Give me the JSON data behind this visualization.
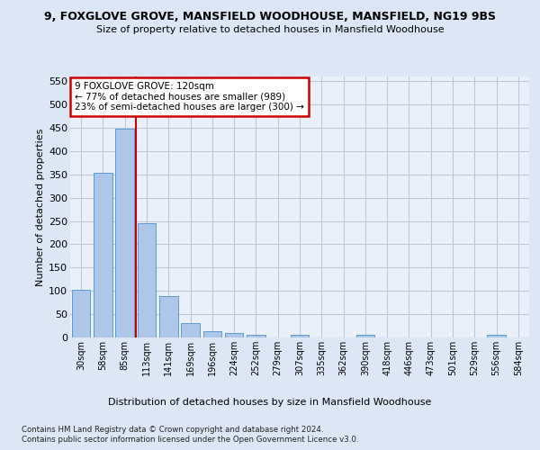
{
  "title": "9, FOXGLOVE GROVE, MANSFIELD WOODHOUSE, MANSFIELD, NG19 9BS",
  "subtitle": "Size of property relative to detached houses in Mansfield Woodhouse",
  "xlabel": "Distribution of detached houses by size in Mansfield Woodhouse",
  "ylabel": "Number of detached properties",
  "bin_labels": [
    "30sqm",
    "58sqm",
    "85sqm",
    "113sqm",
    "141sqm",
    "169sqm",
    "196sqm",
    "224sqm",
    "252sqm",
    "279sqm",
    "307sqm",
    "335sqm",
    "362sqm",
    "390sqm",
    "418sqm",
    "446sqm",
    "473sqm",
    "501sqm",
    "529sqm",
    "556sqm",
    "584sqm"
  ],
  "bar_values": [
    103,
    353,
    448,
    245,
    88,
    30,
    13,
    9,
    5,
    0,
    5,
    0,
    0,
    5,
    0,
    0,
    0,
    0,
    0,
    5,
    0
  ],
  "bar_color": "#aec6e8",
  "bar_edgecolor": "#5b9bd5",
  "grid_color": "#c0c8d8",
  "background_color": "#dce6f5",
  "plot_bg_color": "#eaf0fa",
  "vline_color": "#cc0000",
  "vline_index": 3,
  "annotation_text": "9 FOXGLOVE GROVE: 120sqm\n← 77% of detached houses are smaller (989)\n23% of semi-detached houses are larger (300) →",
  "annotation_box_color": "#ffffff",
  "annotation_box_edgecolor": "#cc0000",
  "ylim": [
    0,
    560
  ],
  "yticks": [
    0,
    50,
    100,
    150,
    200,
    250,
    300,
    350,
    400,
    450,
    500,
    550
  ],
  "footnote1": "Contains HM Land Registry data © Crown copyright and database right 2024.",
  "footnote2": "Contains public sector information licensed under the Open Government Licence v3.0."
}
